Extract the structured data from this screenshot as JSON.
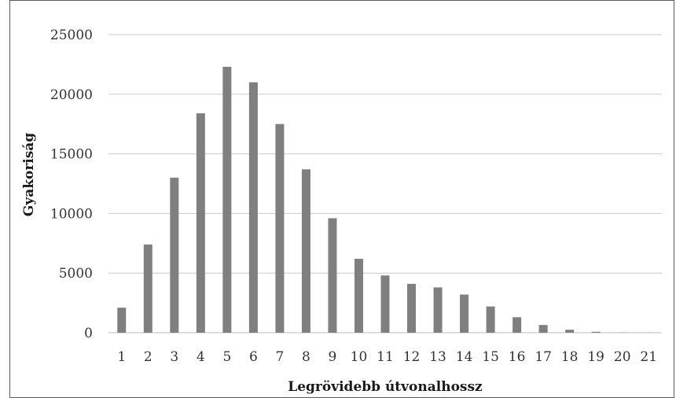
{
  "chart_data": {
    "type": "bar",
    "xlabel": "Legrövidebb útvonalhossz",
    "ylabel": "Gyakoriság",
    "categories": [
      "1",
      "2",
      "3",
      "4",
      "5",
      "6",
      "7",
      "8",
      "9",
      "10",
      "11",
      "12",
      "13",
      "14",
      "15",
      "16",
      "17",
      "18",
      "19",
      "20",
      "21"
    ],
    "values": [
      2100,
      7400,
      13000,
      18400,
      22300,
      21000,
      17500,
      13700,
      9600,
      6200,
      4800,
      4100,
      3800,
      3200,
      2200,
      1300,
      650,
      250,
      80,
      20,
      10
    ],
    "ylim": [
      0,
      25000
    ],
    "yticks": [
      "0",
      "5000",
      "10000",
      "15000",
      "20000",
      "25000"
    ],
    "grid": true,
    "bar_color": "#7f7f7f",
    "grid_color": "#c8c8c8"
  }
}
